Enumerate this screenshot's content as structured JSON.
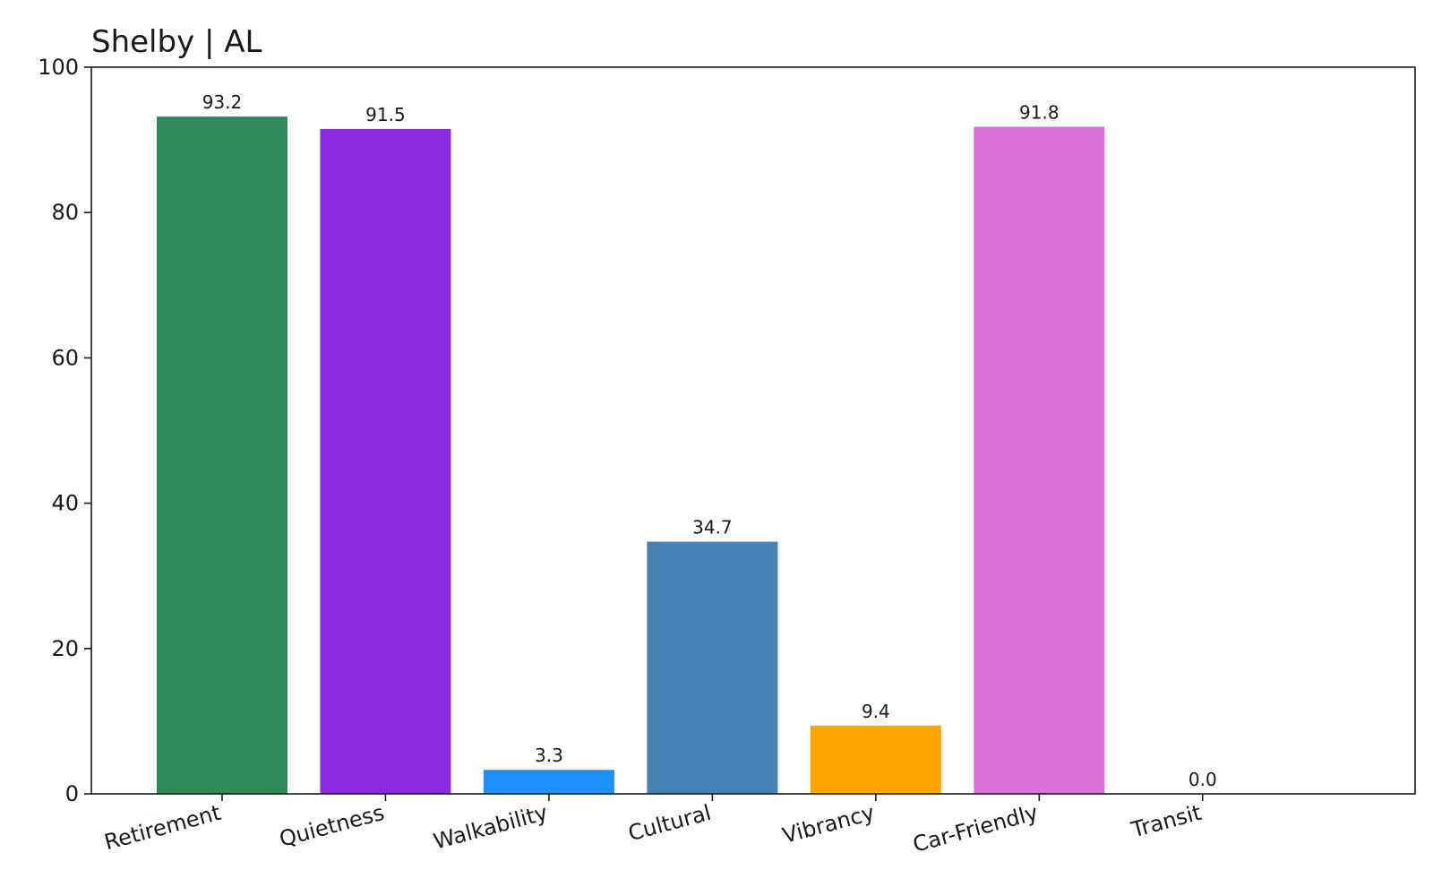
{
  "chart_data": {
    "type": "bar",
    "title": "Shelby | AL",
    "xlabel": "",
    "ylabel": "",
    "categories": [
      "Retirement",
      "Quietness",
      "Walkability",
      "Cultural",
      "Vibrancy",
      "Car-Friendly",
      "Transit"
    ],
    "values": [
      93.2,
      91.5,
      3.3,
      34.7,
      9.4,
      91.8,
      0.0
    ],
    "data_labels": [
      "93.2",
      "91.5",
      "3.3",
      "34.7",
      "9.4",
      "91.8",
      "0.0"
    ],
    "colors": [
      "#2e8b57",
      "#8a2be2",
      "#1e90ff",
      "#4682b4",
      "#ffa500",
      "#da70d6",
      "#808080"
    ],
    "ylim": [
      0,
      100
    ],
    "yticks": [
      0,
      20,
      40,
      60,
      80,
      100
    ],
    "ytick_labels": [
      "0",
      "20",
      "40",
      "60",
      "80",
      "100"
    ],
    "grid": false,
    "legend": "none"
  }
}
